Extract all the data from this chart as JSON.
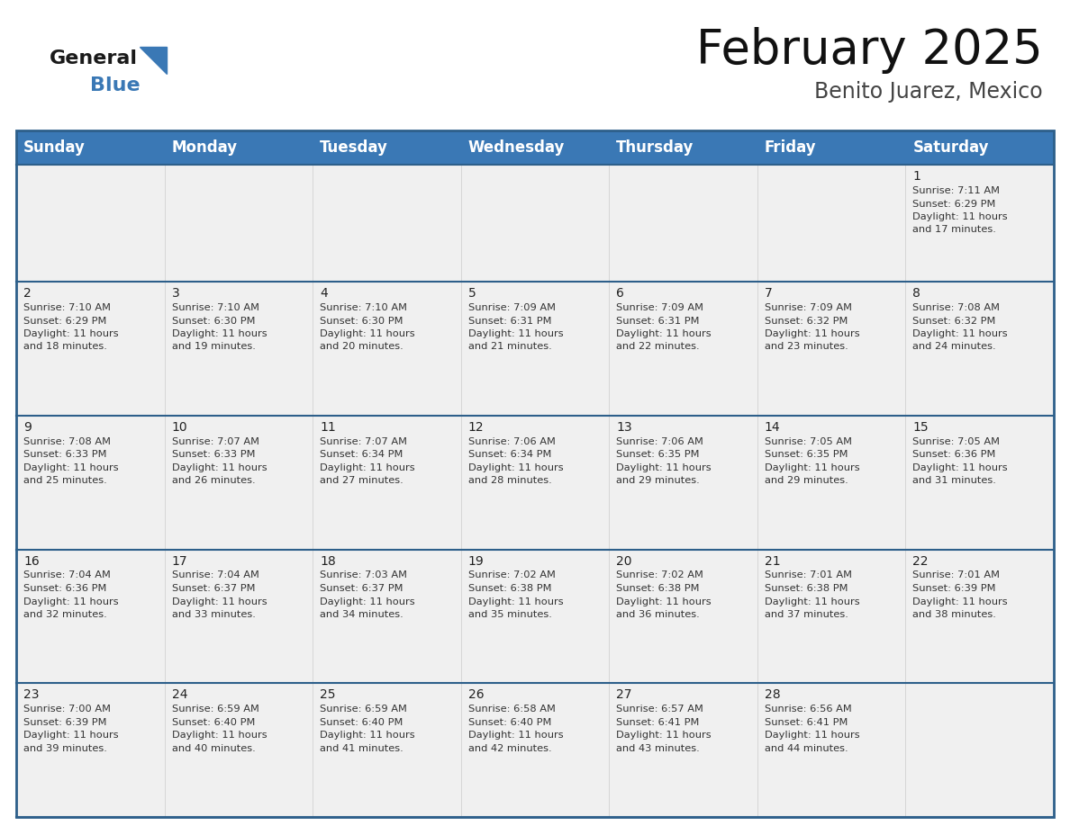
{
  "title": "February 2025",
  "subtitle": "Benito Juarez, Mexico",
  "days_of_week": [
    "Sunday",
    "Monday",
    "Tuesday",
    "Wednesday",
    "Thursday",
    "Friday",
    "Saturday"
  ],
  "header_bg": "#3a78b5",
  "header_text": "#ffffff",
  "cell_bg": "#f0f0f0",
  "border_color": "#2d5f8a",
  "text_color": "#333333",
  "day_num_color": "#222222",
  "calendar_data": [
    [
      null,
      null,
      null,
      null,
      null,
      null,
      {
        "day": 1,
        "sunrise": "7:11 AM",
        "sunset": "6:29 PM",
        "daylight": "11 hours\nand 17 minutes."
      }
    ],
    [
      {
        "day": 2,
        "sunrise": "7:10 AM",
        "sunset": "6:29 PM",
        "daylight": "11 hours\nand 18 minutes."
      },
      {
        "day": 3,
        "sunrise": "7:10 AM",
        "sunset": "6:30 PM",
        "daylight": "11 hours\nand 19 minutes."
      },
      {
        "day": 4,
        "sunrise": "7:10 AM",
        "sunset": "6:30 PM",
        "daylight": "11 hours\nand 20 minutes."
      },
      {
        "day": 5,
        "sunrise": "7:09 AM",
        "sunset": "6:31 PM",
        "daylight": "11 hours\nand 21 minutes."
      },
      {
        "day": 6,
        "sunrise": "7:09 AM",
        "sunset": "6:31 PM",
        "daylight": "11 hours\nand 22 minutes."
      },
      {
        "day": 7,
        "sunrise": "7:09 AM",
        "sunset": "6:32 PM",
        "daylight": "11 hours\nand 23 minutes."
      },
      {
        "day": 8,
        "sunrise": "7:08 AM",
        "sunset": "6:32 PM",
        "daylight": "11 hours\nand 24 minutes."
      }
    ],
    [
      {
        "day": 9,
        "sunrise": "7:08 AM",
        "sunset": "6:33 PM",
        "daylight": "11 hours\nand 25 minutes."
      },
      {
        "day": 10,
        "sunrise": "7:07 AM",
        "sunset": "6:33 PM",
        "daylight": "11 hours\nand 26 minutes."
      },
      {
        "day": 11,
        "sunrise": "7:07 AM",
        "sunset": "6:34 PM",
        "daylight": "11 hours\nand 27 minutes."
      },
      {
        "day": 12,
        "sunrise": "7:06 AM",
        "sunset": "6:34 PM",
        "daylight": "11 hours\nand 28 minutes."
      },
      {
        "day": 13,
        "sunrise": "7:06 AM",
        "sunset": "6:35 PM",
        "daylight": "11 hours\nand 29 minutes."
      },
      {
        "day": 14,
        "sunrise": "7:05 AM",
        "sunset": "6:35 PM",
        "daylight": "11 hours\nand 29 minutes."
      },
      {
        "day": 15,
        "sunrise": "7:05 AM",
        "sunset": "6:36 PM",
        "daylight": "11 hours\nand 31 minutes."
      }
    ],
    [
      {
        "day": 16,
        "sunrise": "7:04 AM",
        "sunset": "6:36 PM",
        "daylight": "11 hours\nand 32 minutes."
      },
      {
        "day": 17,
        "sunrise": "7:04 AM",
        "sunset": "6:37 PM",
        "daylight": "11 hours\nand 33 minutes."
      },
      {
        "day": 18,
        "sunrise": "7:03 AM",
        "sunset": "6:37 PM",
        "daylight": "11 hours\nand 34 minutes."
      },
      {
        "day": 19,
        "sunrise": "7:02 AM",
        "sunset": "6:38 PM",
        "daylight": "11 hours\nand 35 minutes."
      },
      {
        "day": 20,
        "sunrise": "7:02 AM",
        "sunset": "6:38 PM",
        "daylight": "11 hours\nand 36 minutes."
      },
      {
        "day": 21,
        "sunrise": "7:01 AM",
        "sunset": "6:38 PM",
        "daylight": "11 hours\nand 37 minutes."
      },
      {
        "day": 22,
        "sunrise": "7:01 AM",
        "sunset": "6:39 PM",
        "daylight": "11 hours\nand 38 minutes."
      }
    ],
    [
      {
        "day": 23,
        "sunrise": "7:00 AM",
        "sunset": "6:39 PM",
        "daylight": "11 hours\nand 39 minutes."
      },
      {
        "day": 24,
        "sunrise": "6:59 AM",
        "sunset": "6:40 PM",
        "daylight": "11 hours\nand 40 minutes."
      },
      {
        "day": 25,
        "sunrise": "6:59 AM",
        "sunset": "6:40 PM",
        "daylight": "11 hours\nand 41 minutes."
      },
      {
        "day": 26,
        "sunrise": "6:58 AM",
        "sunset": "6:40 PM",
        "daylight": "11 hours\nand 42 minutes."
      },
      {
        "day": 27,
        "sunrise": "6:57 AM",
        "sunset": "6:41 PM",
        "daylight": "11 hours\nand 43 minutes."
      },
      {
        "day": 28,
        "sunrise": "6:56 AM",
        "sunset": "6:41 PM",
        "daylight": "11 hours\nand 44 minutes."
      },
      null
    ]
  ],
  "logo_general_color": "#1a1a1a",
  "logo_blue_color": "#3a78b5",
  "title_fontsize": 38,
  "subtitle_fontsize": 17,
  "header_fontsize": 12,
  "day_num_fontsize": 10,
  "cell_text_fontsize": 8.2
}
